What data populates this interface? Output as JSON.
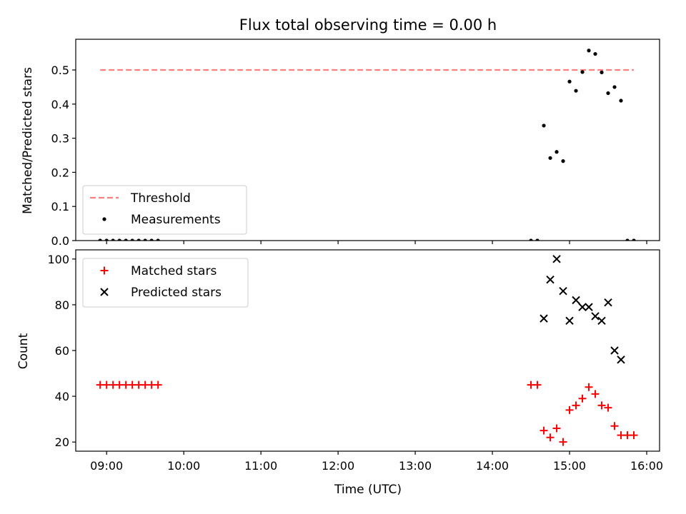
{
  "title": "Flux total observing time = 0.00 h",
  "xlabel": "Time (UTC)",
  "colors": {
    "threshold": "#ff7f7f",
    "measurements": "#000000",
    "matched": "#ff0000",
    "predicted": "#000000"
  },
  "chart_data": [
    {
      "type": "scatter",
      "ylabel": "Matched/Predicted stars",
      "xlim": [
        "08:36",
        "16:10"
      ],
      "ylim": [
        0,
        0.59
      ],
      "yticks": [
        "0.0",
        "0.1",
        "0.2",
        "0.3",
        "0.4",
        "0.5"
      ],
      "grid": false,
      "legend": "lower-left",
      "series": [
        {
          "name": "Threshold",
          "style": "dashed-line",
          "x": [
            "08:55",
            "15:50"
          ],
          "y": [
            0.5,
            0.5
          ]
        },
        {
          "name": "Measurements",
          "style": "dot",
          "x": [
            "08:55",
            "09:00",
            "09:05",
            "09:10",
            "09:15",
            "09:20",
            "09:25",
            "09:30",
            "09:35",
            "09:40",
            "14:30",
            "14:35",
            "14:40",
            "14:45",
            "14:50",
            "14:55",
            "15:00",
            "15:05",
            "15:10",
            "15:15",
            "15:20",
            "15:25",
            "15:30",
            "15:35",
            "15:40",
            "15:45",
            "15:50"
          ],
          "y": [
            0,
            0,
            0,
            0,
            0,
            0,
            0,
            0,
            0,
            0,
            0,
            0,
            0.337,
            0.242,
            0.26,
            0.233,
            0.466,
            0.439,
            0.494,
            0.557,
            0.547,
            0.493,
            0.432,
            0.45,
            0.41,
            0,
            0
          ]
        }
      ]
    },
    {
      "type": "scatter",
      "ylabel": "Count",
      "xlim": [
        "08:36",
        "16:10"
      ],
      "ylim": [
        16,
        104
      ],
      "yticks": [
        "20",
        "40",
        "60",
        "80",
        "100"
      ],
      "grid": false,
      "legend": "top-left",
      "series": [
        {
          "name": "Matched stars",
          "style": "plus",
          "x": [
            "08:55",
            "09:00",
            "09:05",
            "09:10",
            "09:15",
            "09:20",
            "09:25",
            "09:30",
            "09:35",
            "09:40",
            "14:30",
            "14:35",
            "14:40",
            "14:45",
            "14:50",
            "14:55",
            "15:00",
            "15:05",
            "15:10",
            "15:15",
            "15:20",
            "15:25",
            "15:30",
            "15:35",
            "15:40",
            "15:45",
            "15:50"
          ],
          "y": [
            45,
            45,
            45,
            45,
            45,
            45,
            45,
            45,
            45,
            45,
            45,
            45,
            25,
            22,
            26,
            20,
            34,
            36,
            39,
            44,
            41,
            36,
            35,
            27,
            23,
            23,
            23
          ]
        },
        {
          "name": "Predicted stars",
          "style": "x",
          "x": [
            "14:40",
            "14:45",
            "14:50",
            "14:55",
            "15:00",
            "15:05",
            "15:10",
            "15:15",
            "15:20",
            "15:25",
            "15:30",
            "15:35",
            "15:40"
          ],
          "y": [
            74,
            91,
            100,
            86,
            73,
            82,
            79,
            79,
            75,
            73,
            81,
            60,
            56
          ]
        }
      ]
    }
  ],
  "xticks": [
    "09:00",
    "10:00",
    "11:00",
    "12:00",
    "13:00",
    "14:00",
    "15:00",
    "16:00"
  ]
}
